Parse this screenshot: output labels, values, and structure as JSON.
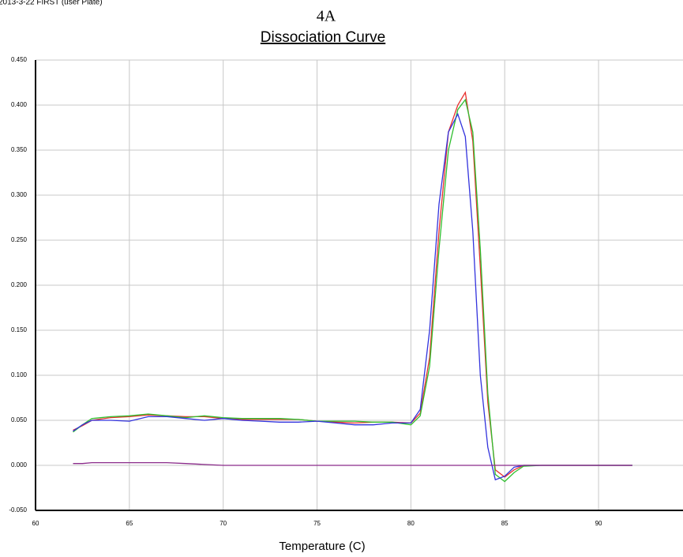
{
  "header": {
    "text": "2013-3-22 FIRST (user Plate)"
  },
  "chart_data": {
    "type": "line",
    "title": "4A",
    "subtitle": "Dissociation Curve",
    "x_label": "Temperature (C)",
    "xlim": [
      60,
      94.5
    ],
    "xticks": [
      60,
      65,
      70,
      75,
      80,
      85,
      90
    ],
    "ylim": [
      -0.05,
      0.45
    ],
    "yticks": [
      {
        "value": -0.05,
        "label": "-0.050"
      },
      {
        "value": 0,
        "label": "0.000"
      },
      {
        "value": 0.05,
        "label": "0.050"
      },
      {
        "value": 0.1,
        "label": "0.100"
      },
      {
        "value": 0.15,
        "label": "0.150"
      },
      {
        "value": 0.2,
        "label": "0.200"
      },
      {
        "value": 0.25,
        "label": "0.250"
      },
      {
        "value": 0.3,
        "label": "0.300"
      },
      {
        "value": 0.35,
        "label": "0.350"
      },
      {
        "value": 0.4,
        "label": "0.400"
      },
      {
        "value": 0.45,
        "label": "0.450"
      }
    ],
    "grid": true,
    "x": [
      62,
      62.5,
      63,
      64,
      65,
      66,
      67,
      68,
      69,
      70,
      71,
      72,
      73,
      74,
      75,
      76,
      77,
      78,
      79,
      80,
      80.5,
      81,
      81.5,
      82,
      82.5,
      82.9,
      83.3,
      83.7,
      84.1,
      84.5,
      85,
      85.5,
      86,
      87,
      88,
      89,
      90,
      91,
      91.8
    ],
    "series": [
      {
        "color": "#e8312f",
        "values": [
          0.039,
          0.044,
          0.05,
          0.053,
          0.054,
          0.056,
          0.055,
          0.054,
          0.054,
          0.052,
          0.051,
          0.051,
          0.051,
          0.051,
          0.049,
          0.048,
          0.047,
          0.048,
          0.048,
          0.047,
          0.058,
          0.12,
          0.26,
          0.37,
          0.4,
          0.414,
          0.36,
          0.22,
          0.07,
          -0.005,
          -0.013,
          -0.005,
          0,
          0,
          0,
          0,
          0,
          0,
          0
        ]
      },
      {
        "color": "#2fbf2f",
        "values": [
          0.037,
          0.045,
          0.052,
          0.054,
          0.055,
          0.057,
          0.055,
          0.053,
          0.055,
          0.053,
          0.052,
          0.052,
          0.052,
          0.051,
          0.049,
          0.049,
          0.049,
          0.048,
          0.048,
          0.045,
          0.055,
          0.11,
          0.24,
          0.35,
          0.395,
          0.406,
          0.37,
          0.24,
          0.08,
          -0.01,
          -0.018,
          -0.008,
          -0.001,
          0,
          0,
          0,
          0,
          0,
          0
        ]
      },
      {
        "color": "#3333dd",
        "values": [
          0.038,
          0.045,
          0.05,
          0.05,
          0.049,
          0.054,
          0.054,
          0.052,
          0.05,
          0.052,
          0.05,
          0.049,
          0.048,
          0.048,
          0.049,
          0.047,
          0.045,
          0.045,
          0.047,
          0.047,
          0.062,
          0.15,
          0.29,
          0.37,
          0.39,
          0.365,
          0.26,
          0.1,
          0.02,
          -0.016,
          -0.012,
          -0.002,
          0,
          0,
          0,
          0,
          0,
          0,
          0
        ]
      },
      {
        "color": "#8a2b8a",
        "values": [
          0.002,
          0.002,
          0.003,
          0.003,
          0.003,
          0.003,
          0.003,
          0.002,
          0.001,
          0,
          0,
          0,
          0,
          0,
          0,
          0,
          0,
          0,
          0,
          0,
          0,
          0,
          0,
          0,
          0,
          0,
          0,
          0,
          0,
          0,
          0,
          0,
          0,
          0,
          0,
          0,
          0,
          0,
          0
        ]
      }
    ]
  }
}
